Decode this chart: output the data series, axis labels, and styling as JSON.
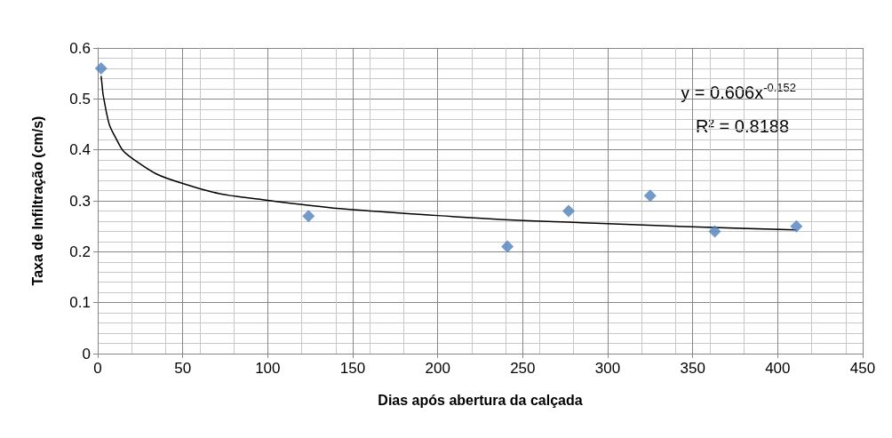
{
  "chart_data": {
    "type": "scatter",
    "xlabel": "Dias após abertura da calçada",
    "ylabel": "Taxa de Infiltração (cm/s)",
    "xlim": [
      0,
      450
    ],
    "xticks": [
      0,
      50,
      100,
      150,
      200,
      250,
      300,
      350,
      400,
      450
    ],
    "ylim": [
      0,
      0.6
    ],
    "yticks": [
      0,
      0.1,
      0.2,
      0.3,
      0.4,
      0.5,
      0.6
    ],
    "grid": true,
    "marker": "diamond",
    "series": [
      {
        "color": "#4f81bd",
        "x": [
          2,
          124,
          241,
          277,
          325,
          363,
          411
        ],
        "values": [
          0.56,
          0.27,
          0.21,
          0.28,
          0.31,
          0.24,
          0.25
        ]
      },
      {
        "type": "line",
        "marker": "none",
        "line_style": "solid",
        "color": "#000000",
        "x": [
          2,
          5,
          10,
          20,
          50,
          100,
          200,
          300,
          411
        ],
        "values": [
          0.545,
          0.475,
          0.427,
          0.384,
          0.334,
          0.301,
          0.271,
          0.255,
          0.243
        ]
      }
    ],
    "annotations": [
      "y = 0.606x$^{-0.152}$",
      "R² = 0.8188"
    ]
  }
}
